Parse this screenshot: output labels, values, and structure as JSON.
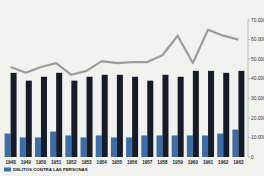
{
  "chart_data": {
    "type": "bar",
    "categories": [
      "1948",
      "1949",
      "1950",
      "1951",
      "1952",
      "1953",
      "1954",
      "1955",
      "1956",
      "1957",
      "1958",
      "1959",
      "1960",
      "1961",
      "1962",
      "1963"
    ],
    "series": [
      {
        "name": "DELITOS CONTRA LAS PERSONAS",
        "color": "#3b6ea8",
        "type": "bar",
        "values": [
          12000,
          10000,
          10000,
          13000,
          11000,
          10000,
          11000,
          10000,
          10000,
          11000,
          11000,
          11000,
          11000,
          11000,
          12000,
          14000
        ]
      },
      {
        "color": "#161b28",
        "type": "bar",
        "values": [
          43000,
          39000,
          41000,
          43000,
          39000,
          41000,
          42000,
          42000,
          41000,
          39000,
          42000,
          41000,
          44000,
          44000,
          43000,
          44000
        ]
      },
      {
        "color": "#9c9c9c",
        "type": "line",
        "values": [
          46000,
          43000,
          46000,
          48000,
          42000,
          44000,
          49000,
          48000,
          48500,
          48500,
          52000,
          62000,
          48000,
          65000,
          62000,
          60000
        ]
      }
    ],
    "ylim": [
      0,
      70000
    ],
    "yticks": [
      0,
      {
        "value": 10000,
        "label": "10.000"
      },
      {
        "value": 20000,
        "label": "20.000"
      },
      {
        "value": 30000,
        "label": "30.000"
      },
      {
        "value": 40000,
        "label": "40.000"
      },
      {
        "value": 50000,
        "label": "50.000"
      },
      {
        "value": 60000,
        "label": "60.000"
      },
      {
        "value": 70000,
        "label": "70.000"
      }
    ],
    "grid": false,
    "legend": "bottom-left"
  }
}
